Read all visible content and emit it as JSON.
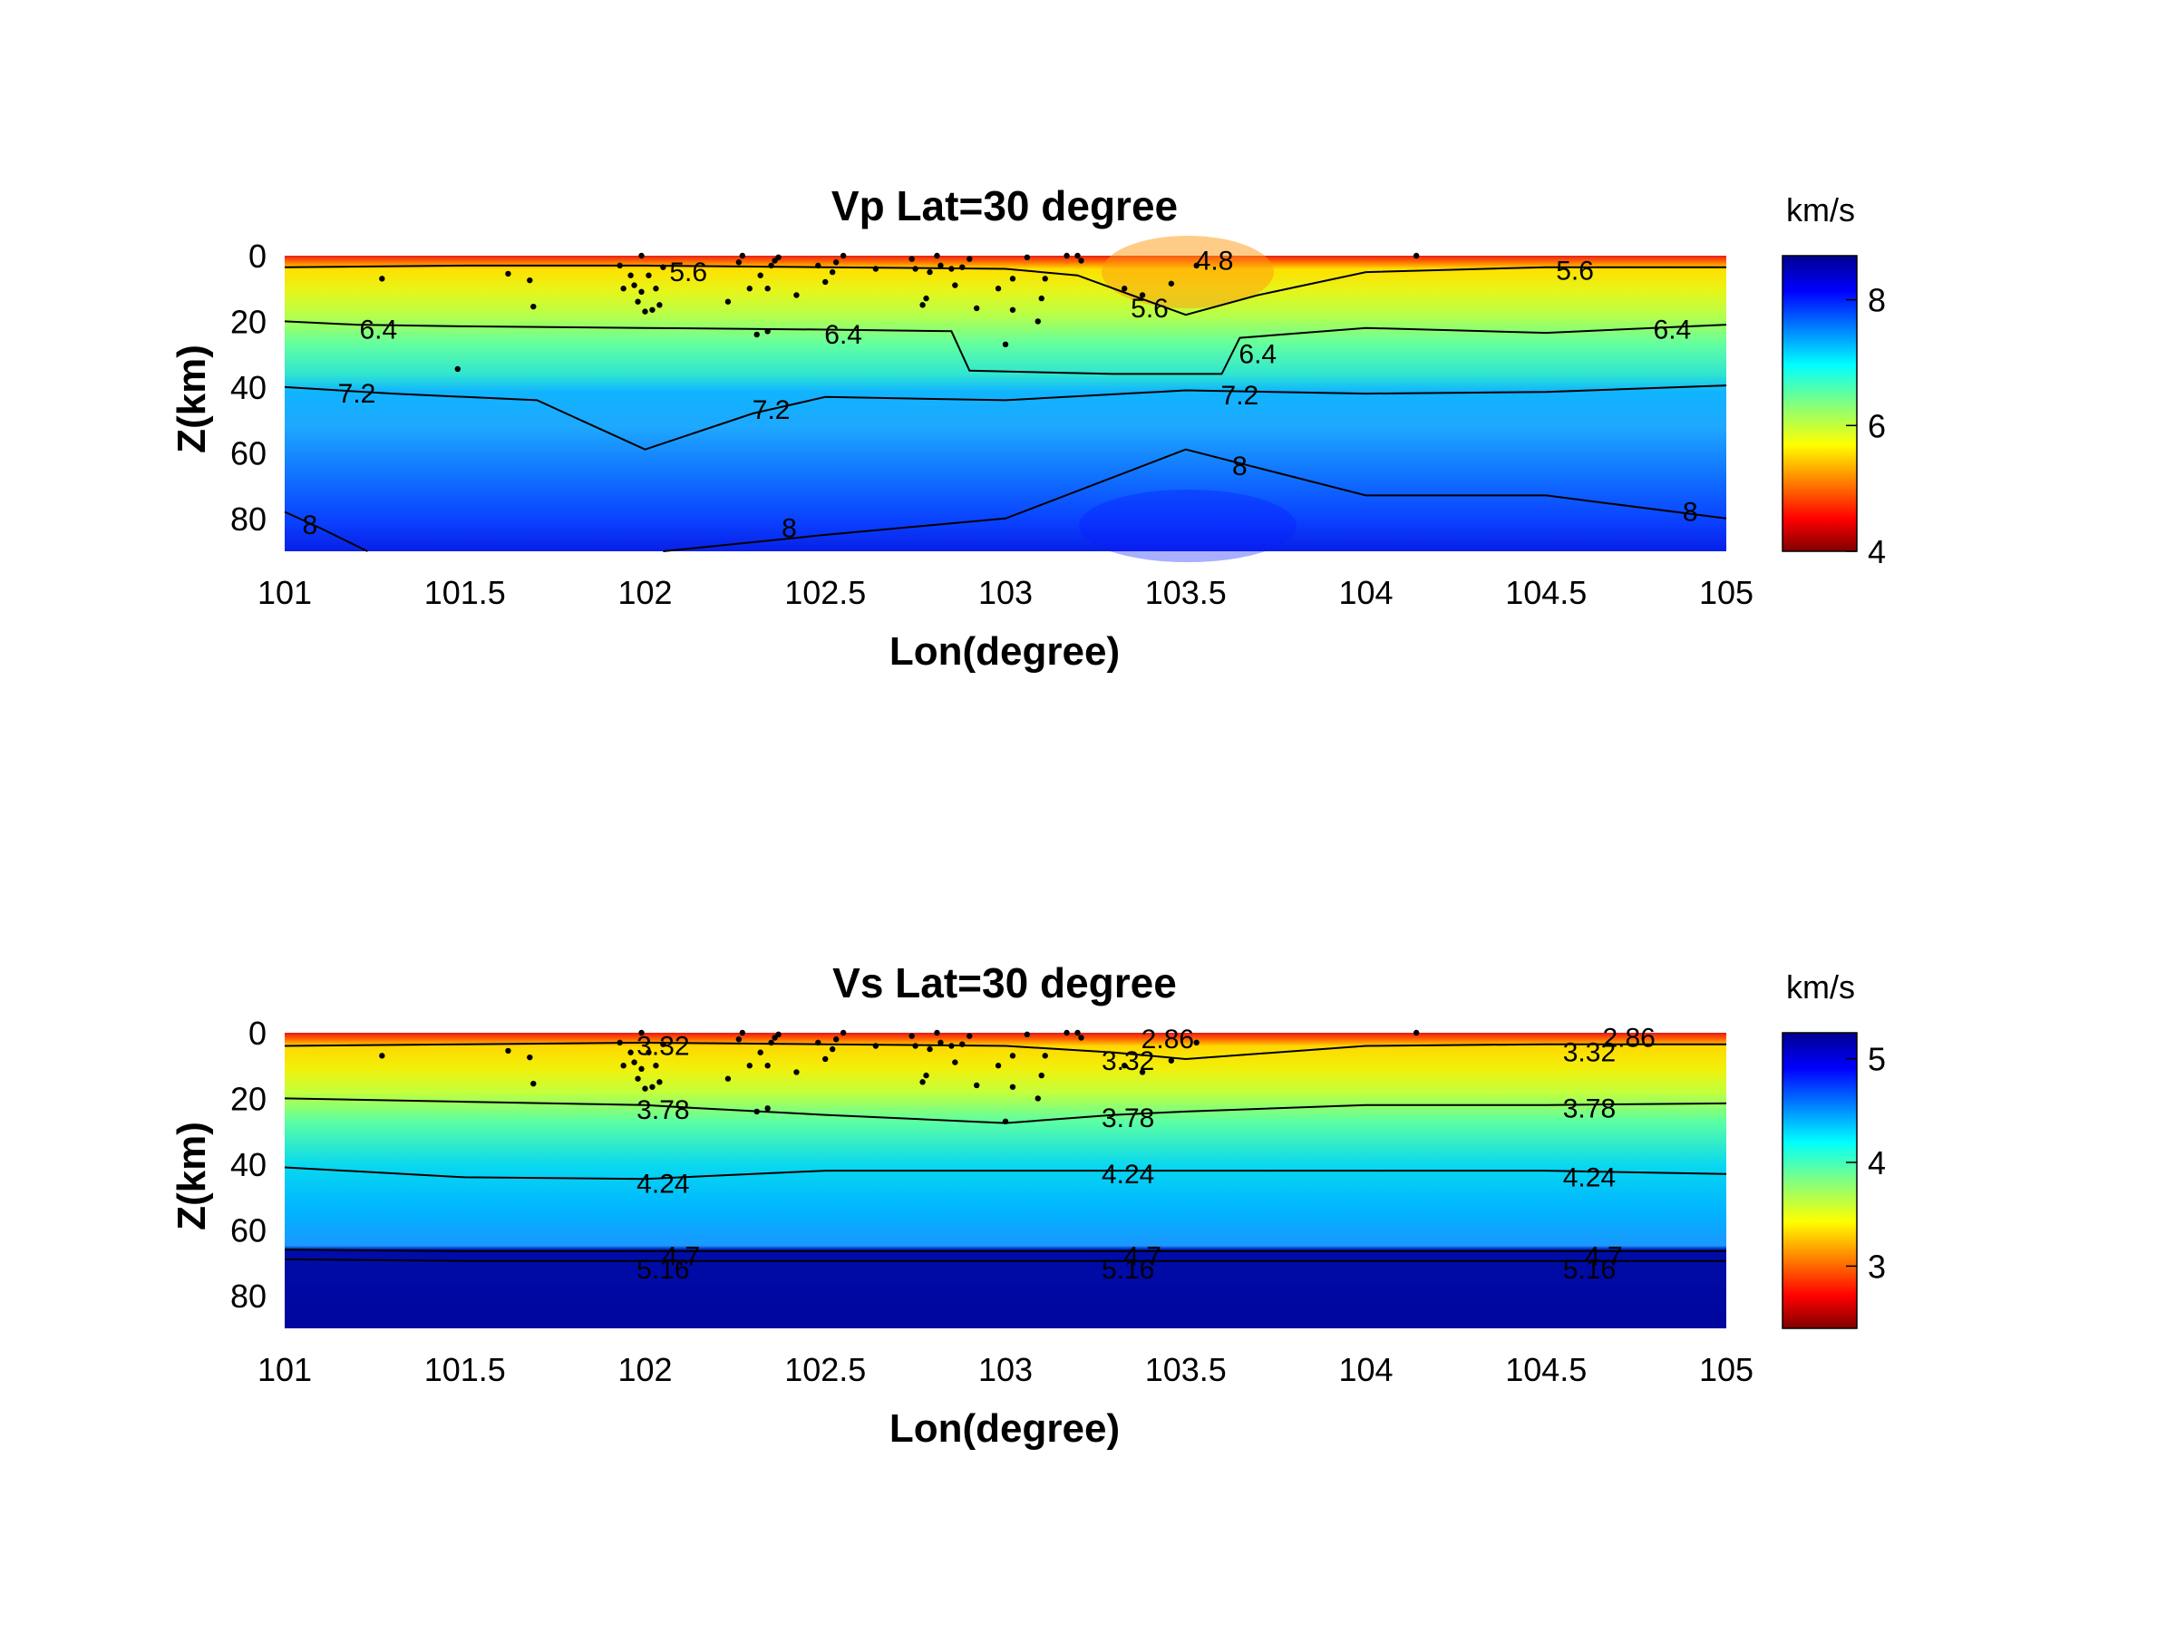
{
  "chart_data": [
    {
      "type": "heatmap",
      "title": "Vp Lat=30 degree",
      "xlabel": "Lon(degree)",
      "ylabel": "Z(km)",
      "xlim": [
        101,
        105
      ],
      "ylim": [
        0,
        90
      ],
      "y_reversed": true,
      "xticks": [
        "101",
        "101.5",
        "102",
        "102.5",
        "103",
        "103.5",
        "104",
        "104.5",
        "105"
      ],
      "yticks": [
        "0",
        "20",
        "40",
        "60",
        "80"
      ],
      "colorbar": {
        "label": "km/s",
        "min": 4,
        "max": 8.7,
        "ticks": [
          "4",
          "6",
          "8"
        ],
        "colormap": "jet"
      },
      "grid": false,
      "contours": [
        {
          "level": 5.6,
          "x": [
            101,
            101.5,
            102,
            102.5,
            103,
            103.2,
            103.35,
            103.5,
            103.7,
            104,
            104.5,
            105
          ],
          "y": [
            3.5,
            3,
            3,
            3.5,
            4,
            6,
            12,
            18,
            12,
            5,
            3.5,
            3.5
          ]
        },
        {
          "level": 6.4,
          "x": [
            101,
            101.2,
            101.5,
            102,
            102.5,
            102.85,
            102.9,
            103.3,
            103.6,
            103.65,
            104,
            104.5,
            105
          ],
          "y": [
            20,
            21,
            21.5,
            22,
            22.5,
            23,
            35,
            36,
            36,
            25,
            22,
            23.5,
            21
          ]
        },
        {
          "level": 7.2,
          "x": [
            101,
            101.3,
            101.7,
            102,
            102.3,
            102.5,
            103,
            103.5,
            104,
            104.5,
            105
          ],
          "y": [
            40,
            42,
            44,
            59,
            48,
            43,
            44,
            41,
            42,
            41.5,
            39.5
          ]
        },
        {
          "level": 8,
          "x": [
            101,
            101.1,
            101.23
          ],
          "y": [
            78,
            83,
            90
          ]
        },
        {
          "level": 8,
          "x": [
            102.05,
            102.5,
            103,
            103.5,
            104,
            104.5,
            105
          ],
          "y": [
            90,
            85,
            80,
            59,
            73,
            73,
            80
          ]
        }
      ],
      "contour_labels": [
        {
          "text": "5.6",
          "x": 102.12,
          "y": 5
        },
        {
          "text": "5.6",
          "x": 103.4,
          "y": 16
        },
        {
          "text": "5.6",
          "x": 104.58,
          "y": 4.5
        },
        {
          "text": "4.8",
          "x": 103.58,
          "y": 1.5
        },
        {
          "text": "6.4",
          "x": 101.26,
          "y": 22.5
        },
        {
          "text": "6.4",
          "x": 102.55,
          "y": 24
        },
        {
          "text": "6.4",
          "x": 103.7,
          "y": 30
        },
        {
          "text": "6.4",
          "x": 104.85,
          "y": 22.5
        },
        {
          "text": "7.2",
          "x": 101.2,
          "y": 42
        },
        {
          "text": "7.2",
          "x": 102.35,
          "y": 47
        },
        {
          "text": "7.2",
          "x": 103.65,
          "y": 42.5
        },
        {
          "text": "8",
          "x": 101.07,
          "y": 82
        },
        {
          "text": "8",
          "x": 102.4,
          "y": 83
        },
        {
          "text": "8",
          "x": 103.65,
          "y": 64
        },
        {
          "text": "8",
          "x": 104.9,
          "y": 78
        }
      ],
      "events": [
        {
          "x": 101.27,
          "y": 7
        },
        {
          "x": 101.62,
          "y": 5.5
        },
        {
          "x": 101.68,
          "y": 7.5
        },
        {
          "x": 101.69,
          "y": 15.5
        },
        {
          "x": 101.93,
          "y": 3
        },
        {
          "x": 101.94,
          "y": 10
        },
        {
          "x": 101.96,
          "y": 6
        },
        {
          "x": 101.97,
          "y": 9
        },
        {
          "x": 101.98,
          "y": 14
        },
        {
          "x": 101.99,
          "y": 11
        },
        {
          "x": 101.99,
          "y": 0
        },
        {
          "x": 102.0,
          "y": 17
        },
        {
          "x": 102.01,
          "y": 6
        },
        {
          "x": 102.02,
          "y": 16.5
        },
        {
          "x": 102.03,
          "y": 10
        },
        {
          "x": 102.04,
          "y": 15
        },
        {
          "x": 102.05,
          "y": 3.5
        },
        {
          "x": 102.23,
          "y": 14
        },
        {
          "x": 102.26,
          "y": 2
        },
        {
          "x": 102.27,
          "y": 0
        },
        {
          "x": 102.29,
          "y": 10
        },
        {
          "x": 102.31,
          "y": 24
        },
        {
          "x": 102.32,
          "y": 6
        },
        {
          "x": 102.34,
          "y": 10
        },
        {
          "x": 102.34,
          "y": 23
        },
        {
          "x": 102.35,
          "y": 3
        },
        {
          "x": 102.36,
          "y": 1.5
        },
        {
          "x": 102.37,
          "y": 0.5
        },
        {
          "x": 102.42,
          "y": 12
        },
        {
          "x": 102.48,
          "y": 3
        },
        {
          "x": 102.5,
          "y": 8
        },
        {
          "x": 102.52,
          "y": 5
        },
        {
          "x": 102.53,
          "y": 2
        },
        {
          "x": 102.55,
          "y": 0
        },
        {
          "x": 102.64,
          "y": 4
        },
        {
          "x": 102.74,
          "y": 1
        },
        {
          "x": 102.75,
          "y": 4
        },
        {
          "x": 102.77,
          "y": 15
        },
        {
          "x": 102.78,
          "y": 13
        },
        {
          "x": 102.79,
          "y": 5
        },
        {
          "x": 102.81,
          "y": 0
        },
        {
          "x": 102.82,
          "y": 3
        },
        {
          "x": 102.85,
          "y": 4
        },
        {
          "x": 102.86,
          "y": 9
        },
        {
          "x": 102.88,
          "y": 3.5
        },
        {
          "x": 102.9,
          "y": 1
        },
        {
          "x": 102.92,
          "y": 16
        },
        {
          "x": 102.98,
          "y": 10
        },
        {
          "x": 103.0,
          "y": 27
        },
        {
          "x": 103.02,
          "y": 7
        },
        {
          "x": 103.02,
          "y": 16.5
        },
        {
          "x": 103.06,
          "y": 0.5
        },
        {
          "x": 103.09,
          "y": 20
        },
        {
          "x": 103.1,
          "y": 13
        },
        {
          "x": 103.11,
          "y": 7
        },
        {
          "x": 103.17,
          "y": 0
        },
        {
          "x": 103.2,
          "y": 0
        },
        {
          "x": 103.21,
          "y": 1.5
        },
        {
          "x": 103.33,
          "y": 10
        },
        {
          "x": 103.38,
          "y": 12
        },
        {
          "x": 103.46,
          "y": 8.5
        },
        {
          "x": 103.53,
          "y": 3
        },
        {
          "x": 104.14,
          "y": 0
        },
        {
          "x": 101.48,
          "y": 34.5
        }
      ]
    },
    {
      "type": "heatmap",
      "title": "Vs Lat=30 degree",
      "xlabel": "Lon(degree)",
      "ylabel": "Z(km)",
      "xlim": [
        101,
        105
      ],
      "ylim": [
        0,
        90
      ],
      "y_reversed": true,
      "xticks": [
        "101",
        "101.5",
        "102",
        "102.5",
        "103",
        "103.5",
        "104",
        "104.5",
        "105"
      ],
      "yticks": [
        "0",
        "20",
        "40",
        "60",
        "80"
      ],
      "colorbar": {
        "label": "km/s",
        "min": 2.4,
        "max": 5.25,
        "ticks": [
          "3",
          "4",
          "5"
        ],
        "colormap": "jet"
      },
      "grid": false,
      "contours": [
        {
          "level": 3.32,
          "x": [
            101,
            101.5,
            102,
            102.5,
            103,
            103.3,
            103.5,
            104,
            104.5,
            105
          ],
          "y": [
            4,
            3.5,
            3,
            3.5,
            4,
            6,
            8,
            4,
            3.5,
            3.5
          ]
        },
        {
          "level": 3.78,
          "x": [
            101,
            101.5,
            102,
            102.15,
            102.5,
            103,
            103.3,
            103.5,
            104,
            104.5,
            105
          ],
          "y": [
            20,
            21,
            22,
            23,
            25,
            27.5,
            25,
            24,
            22,
            22,
            21.5
          ]
        },
        {
          "level": 4.24,
          "x": [
            101,
            101.5,
            102,
            102.5,
            103,
            103.5,
            104,
            104.5,
            105
          ],
          "y": [
            41,
            44,
            44.5,
            42,
            42,
            42,
            42,
            42,
            43
          ]
        },
        {
          "level": 4.7,
          "x": [
            101,
            101.5,
            102,
            102.5,
            103,
            103.5,
            104,
            104.5,
            105
          ],
          "y": [
            66,
            66.5,
            66.5,
            66.5,
            66.5,
            66.5,
            66.5,
            66.5,
            66.5
          ]
        },
        {
          "level": 5.16,
          "x": [
            101,
            101.5,
            102,
            102.5,
            103,
            103.5,
            104,
            104.5,
            105
          ],
          "y": [
            69,
            69.5,
            69.5,
            69.5,
            69.5,
            69.5,
            69.5,
            69.5,
            69.5
          ]
        }
      ],
      "contour_labels": [
        {
          "text": "3.32",
          "x": 102.05,
          "y": 4
        },
        {
          "text": "3.32",
          "x": 103.34,
          "y": 8.5
        },
        {
          "text": "3.32",
          "x": 104.62,
          "y": 6
        },
        {
          "text": "2.86",
          "x": 103.45,
          "y": 2
        },
        {
          "text": "2.86",
          "x": 104.73,
          "y": 1.5
        },
        {
          "text": "3.78",
          "x": 102.05,
          "y": 23.5
        },
        {
          "text": "3.78",
          "x": 103.34,
          "y": 26
        },
        {
          "text": "3.78",
          "x": 104.62,
          "y": 23
        },
        {
          "text": "4.24",
          "x": 102.05,
          "y": 46
        },
        {
          "text": "4.24",
          "x": 103.34,
          "y": 43
        },
        {
          "text": "4.24",
          "x": 104.62,
          "y": 44
        },
        {
          "text": "4.7",
          "x": 102.1,
          "y": 68
        },
        {
          "text": "4.7",
          "x": 103.38,
          "y": 68
        },
        {
          "text": "4.7",
          "x": 104.66,
          "y": 68
        },
        {
          "text": "5.16",
          "x": 102.05,
          "y": 72
        },
        {
          "text": "5.16",
          "x": 103.34,
          "y": 72
        },
        {
          "text": "5.16",
          "x": 104.62,
          "y": 72
        }
      ],
      "events": [
        {
          "x": 101.27,
          "y": 7
        },
        {
          "x": 101.62,
          "y": 5.5
        },
        {
          "x": 101.68,
          "y": 7.5
        },
        {
          "x": 101.69,
          "y": 15.5
        },
        {
          "x": 101.93,
          "y": 3
        },
        {
          "x": 101.94,
          "y": 10
        },
        {
          "x": 101.96,
          "y": 6
        },
        {
          "x": 101.97,
          "y": 9
        },
        {
          "x": 101.98,
          "y": 14
        },
        {
          "x": 101.99,
          "y": 11
        },
        {
          "x": 101.99,
          "y": 0
        },
        {
          "x": 102.0,
          "y": 17
        },
        {
          "x": 102.01,
          "y": 6
        },
        {
          "x": 102.02,
          "y": 16.5
        },
        {
          "x": 102.03,
          "y": 10
        },
        {
          "x": 102.04,
          "y": 15
        },
        {
          "x": 102.05,
          "y": 3.5
        },
        {
          "x": 102.23,
          "y": 14
        },
        {
          "x": 102.26,
          "y": 2
        },
        {
          "x": 102.27,
          "y": 0
        },
        {
          "x": 102.29,
          "y": 10
        },
        {
          "x": 102.31,
          "y": 24
        },
        {
          "x": 102.32,
          "y": 6
        },
        {
          "x": 102.34,
          "y": 10
        },
        {
          "x": 102.34,
          "y": 23
        },
        {
          "x": 102.35,
          "y": 3
        },
        {
          "x": 102.36,
          "y": 1.5
        },
        {
          "x": 102.37,
          "y": 0.5
        },
        {
          "x": 102.42,
          "y": 12
        },
        {
          "x": 102.48,
          "y": 3
        },
        {
          "x": 102.5,
          "y": 8
        },
        {
          "x": 102.52,
          "y": 5
        },
        {
          "x": 102.53,
          "y": 2
        },
        {
          "x": 102.55,
          "y": 0
        },
        {
          "x": 102.64,
          "y": 4
        },
        {
          "x": 102.74,
          "y": 1
        },
        {
          "x": 102.75,
          "y": 4
        },
        {
          "x": 102.77,
          "y": 15
        },
        {
          "x": 102.78,
          "y": 13
        },
        {
          "x": 102.79,
          "y": 5
        },
        {
          "x": 102.81,
          "y": 0
        },
        {
          "x": 102.82,
          "y": 3
        },
        {
          "x": 102.85,
          "y": 4
        },
        {
          "x": 102.86,
          "y": 9
        },
        {
          "x": 102.88,
          "y": 3.5
        },
        {
          "x": 102.9,
          "y": 1
        },
        {
          "x": 102.92,
          "y": 16
        },
        {
          "x": 102.98,
          "y": 10
        },
        {
          "x": 103.0,
          "y": 27
        },
        {
          "x": 103.02,
          "y": 7
        },
        {
          "x": 103.02,
          "y": 16.5
        },
        {
          "x": 103.06,
          "y": 0.5
        },
        {
          "x": 103.09,
          "y": 20
        },
        {
          "x": 103.1,
          "y": 13
        },
        {
          "x": 103.11,
          "y": 7
        },
        {
          "x": 103.17,
          "y": 0
        },
        {
          "x": 103.2,
          "y": 0
        },
        {
          "x": 103.21,
          "y": 1.5
        },
        {
          "x": 103.33,
          "y": 10
        },
        {
          "x": 103.38,
          "y": 12
        },
        {
          "x": 103.46,
          "y": 8.5
        },
        {
          "x": 103.53,
          "y": 3
        },
        {
          "x": 104.14,
          "y": 0
        }
      ]
    }
  ]
}
